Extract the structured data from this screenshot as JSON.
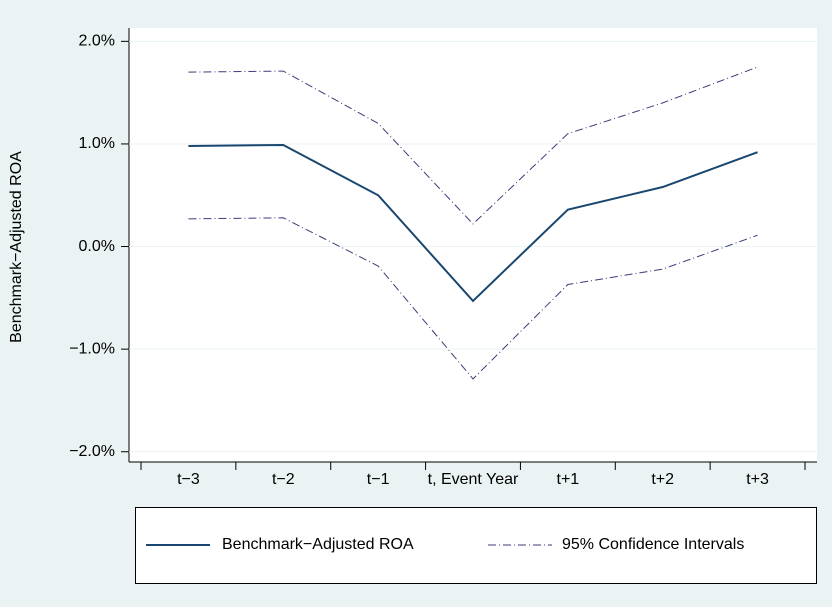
{
  "chart_data": {
    "type": "line",
    "y_label": "Benchmark−Adjusted ROA",
    "categories": [
      "t−3",
      "t−2",
      "t−1",
      "t, Event Year",
      "t+1",
      "t+2",
      "t+3"
    ],
    "series": [
      {
        "name": "Benchmark−Adjusted ROA",
        "color": "#1a476f",
        "values": [
          0.98,
          0.99,
          0.5,
          -0.53,
          0.36,
          0.58,
          0.92
        ]
      }
    ],
    "ci": {
      "name": "95% Confidence Intervals",
      "color": "#3c3c78",
      "upper": [
        1.7,
        1.71,
        1.2,
        0.22,
        1.1,
        1.4,
        1.75
      ],
      "lower": [
        0.27,
        0.28,
        -0.19,
        -1.29,
        -0.37,
        -0.22,
        0.11
      ]
    },
    "ylim": [
      -2.1,
      2.13
    ],
    "yticks": [
      {
        "value": -2,
        "label": "−2.0%"
      },
      {
        "value": -1,
        "label": "−1.0%"
      },
      {
        "value": 0,
        "label": "0.0%"
      },
      {
        "value": 1,
        "label": "1.0%"
      },
      {
        "value": 2,
        "label": "2.0%"
      }
    ],
    "grid": true
  }
}
